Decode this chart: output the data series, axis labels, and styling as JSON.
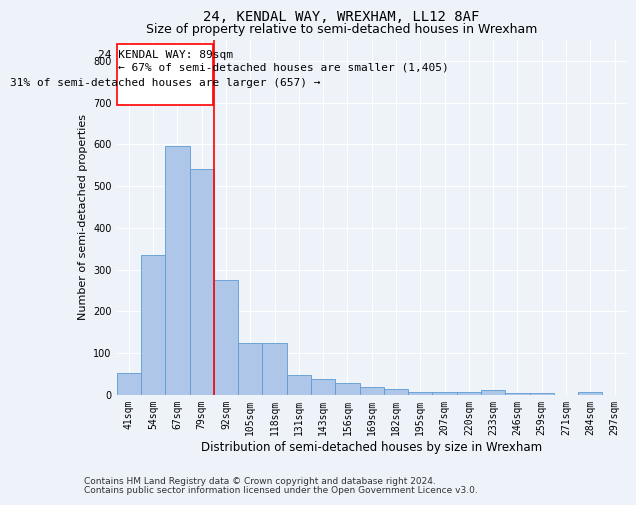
{
  "title": "24, KENDAL WAY, WREXHAM, LL12 8AF",
  "subtitle": "Size of property relative to semi-detached houses in Wrexham",
  "xlabel": "Distribution of semi-detached houses by size in Wrexham",
  "ylabel": "Number of semi-detached properties",
  "bar_labels": [
    "41sqm",
    "54sqm",
    "67sqm",
    "79sqm",
    "92sqm",
    "105sqm",
    "118sqm",
    "131sqm",
    "143sqm",
    "156sqm",
    "169sqm",
    "182sqm",
    "195sqm",
    "207sqm",
    "220sqm",
    "233sqm",
    "246sqm",
    "259sqm",
    "271sqm",
    "284sqm",
    "297sqm"
  ],
  "bar_values": [
    52,
    335,
    597,
    540,
    275,
    125,
    125,
    48,
    38,
    28,
    20,
    15,
    8,
    7,
    6,
    12,
    5,
    4,
    0,
    8,
    0
  ],
  "bar_color": "#AEC6E8",
  "bar_edge_color": "#5B9BD5",
  "annotation_label": "24 KENDAL WAY: 89sqm",
  "annotation_smaller": "← 67% of semi-detached houses are smaller (1,405)",
  "annotation_larger": "31% of semi-detached houses are larger (657) →",
  "ylim": [
    0,
    850
  ],
  "footer1": "Contains HM Land Registry data © Crown copyright and database right 2024.",
  "footer2": "Contains public sector information licensed under the Open Government Licence v3.0.",
  "background_color": "#EEF3FA",
  "plot_bg_color": "#EEF3FA",
  "grid_color": "#FFFFFF",
  "title_fontsize": 10,
  "subtitle_fontsize": 9,
  "tick_fontsize": 7,
  "ylabel_fontsize": 8,
  "xlabel_fontsize": 8.5,
  "annot_fontsize": 8,
  "footer_fontsize": 6.5
}
